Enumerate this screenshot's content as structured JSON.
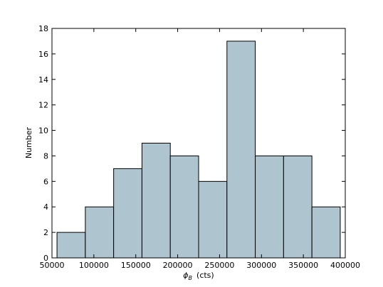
{
  "chart_data": {
    "type": "histogram",
    "ylabel": "Number",
    "xlabel": {
      "symbol": "ϕ",
      "subscript": "B",
      "unit": "(cts)"
    },
    "bins": [
      56000,
      89800,
      123600,
      157400,
      191200,
      225000,
      258800,
      292600,
      326400,
      360200,
      394000
    ],
    "values": [
      2,
      4,
      7,
      9,
      8,
      6,
      17,
      8,
      8,
      4
    ],
    "color": "#aec4ce",
    "xlim": [
      50000,
      400000
    ],
    "xticks": [
      50000,
      100000,
      150000,
      200000,
      250000,
      300000,
      350000,
      400000
    ],
    "ylim": [
      0,
      18
    ],
    "yticks": [
      0,
      2,
      4,
      6,
      8,
      10,
      12,
      14,
      16,
      18
    ]
  }
}
